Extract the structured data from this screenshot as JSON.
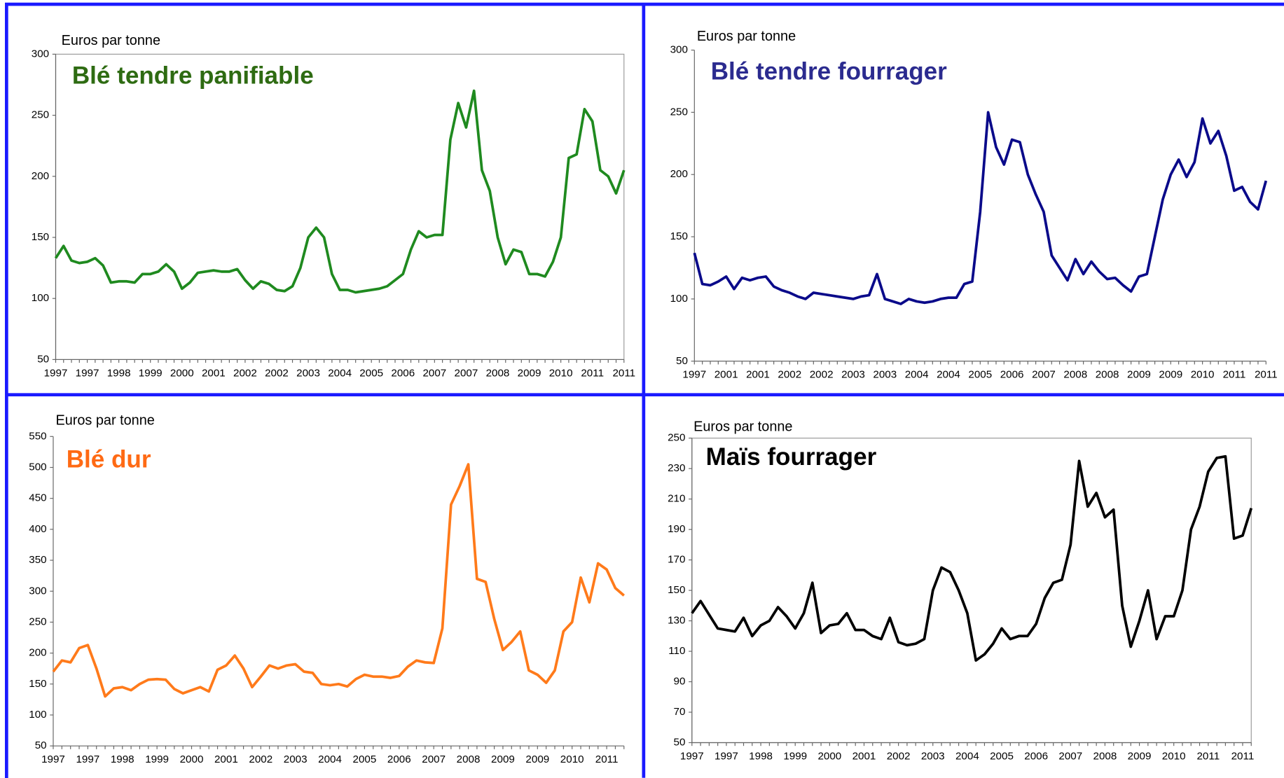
{
  "chart_data": [
    {
      "type": "line",
      "title": "Blé tendre panifiable",
      "y_label": "Euros par tonne",
      "color": "#1f8a1f",
      "categories": [
        "1997",
        null,
        null,
        null,
        "1997",
        null,
        null,
        null,
        "1998",
        null,
        null,
        null,
        "1999",
        null,
        null,
        null,
        "2000",
        null,
        null,
        null,
        "2001",
        null,
        null,
        null,
        "2002",
        null,
        null,
        null,
        "2002",
        null,
        null,
        null,
        "2003",
        null,
        null,
        null,
        "2004",
        null,
        null,
        null,
        "2005",
        null,
        null,
        null,
        "2006",
        null,
        null,
        null,
        "2007",
        null,
        null,
        null,
        "2007",
        null,
        null,
        null,
        "2008",
        null,
        null,
        null,
        "2009",
        null,
        null,
        null,
        "2010",
        null,
        null,
        null,
        "2011",
        null,
        null,
        null,
        "2011"
      ],
      "values": [
        133,
        143,
        131,
        129,
        130,
        133,
        127,
        113,
        114,
        114,
        113,
        120,
        120,
        122,
        128,
        122,
        108,
        113,
        121,
        122,
        123,
        122,
        122,
        124,
        115,
        108,
        114,
        112,
        107,
        106,
        110,
        125,
        150,
        158,
        150,
        120,
        107,
        107,
        105,
        106,
        107,
        108,
        110,
        115,
        120,
        140,
        155,
        150,
        152,
        152,
        230,
        260,
        240,
        270,
        205,
        188,
        150,
        128,
        140,
        138,
        120,
        120,
        118,
        130,
        150,
        215,
        218,
        255,
        245,
        205,
        200,
        186,
        205
      ],
      "ylim": [
        50,
        300
      ],
      "yticks": [
        50,
        100,
        150,
        200,
        250,
        300
      ]
    },
    {
      "type": "line",
      "title": "Blé tendre fourrager",
      "y_label": "Euros par tonne",
      "color": "#0a0a8a",
      "categories": [
        "1997",
        null,
        null,
        null,
        "2001",
        null,
        null,
        null,
        "2001",
        null,
        null,
        null,
        "2002",
        null,
        null,
        null,
        "2002",
        null,
        null,
        null,
        "2003",
        null,
        null,
        null,
        "2003",
        null,
        null,
        null,
        "2004",
        null,
        null,
        null,
        "2004",
        null,
        null,
        null,
        "2005",
        null,
        null,
        null,
        "2006",
        null,
        null,
        null,
        "2007",
        null,
        null,
        null,
        "2008",
        null,
        null,
        null,
        "2008",
        null,
        null,
        null,
        "2009",
        null,
        null,
        null,
        "2009",
        null,
        null,
        null,
        "2010",
        null,
        null,
        null,
        "2011",
        null,
        null,
        null,
        "2011"
      ],
      "values": [
        137,
        112,
        111,
        114,
        118,
        108,
        117,
        115,
        117,
        118,
        110,
        107,
        105,
        102,
        100,
        105,
        104,
        103,
        102,
        101,
        100,
        102,
        103,
        120,
        100,
        98,
        96,
        100,
        98,
        97,
        98,
        100,
        101,
        101,
        112,
        114,
        170,
        250,
        222,
        208,
        228,
        226,
        200,
        184,
        170,
        135,
        125,
        115,
        132,
        120,
        130,
        122,
        116,
        117,
        111,
        106,
        118,
        120,
        150,
        180,
        200,
        212,
        198,
        210,
        245,
        225,
        235,
        215,
        187,
        190,
        178,
        172,
        195
      ],
      "ylim": [
        50,
        300
      ],
      "yticks": [
        50,
        100,
        150,
        200,
        250,
        300
      ]
    },
    {
      "type": "line",
      "title": "Blé dur",
      "y_label": "Euros par tonne",
      "color": "#ff7a1a",
      "categories": [
        "1997",
        null,
        null,
        null,
        "1997",
        null,
        null,
        null,
        "1998",
        null,
        null,
        null,
        "1999",
        null,
        null,
        null,
        "2000",
        null,
        null,
        null,
        "2001",
        null,
        null,
        null,
        "2002",
        null,
        null,
        null,
        "2003",
        null,
        null,
        null,
        "2004",
        null,
        null,
        null,
        "2005",
        null,
        null,
        null,
        "2006",
        null,
        null,
        null,
        "2007",
        null,
        null,
        null,
        "2008",
        null,
        null,
        null,
        "2009",
        null,
        null,
        null,
        "2009",
        null,
        null,
        null,
        "2010",
        null,
        null,
        null,
        "2011",
        null,
        null
      ],
      "values": [
        170,
        188,
        185,
        208,
        213,
        175,
        130,
        143,
        145,
        140,
        150,
        157,
        158,
        157,
        142,
        135,
        140,
        145,
        138,
        173,
        180,
        196,
        175,
        145,
        162,
        180,
        175,
        180,
        182,
        170,
        168,
        150,
        148,
        150,
        146,
        158,
        165,
        162,
        162,
        160,
        163,
        178,
        188,
        185,
        184,
        240,
        440,
        470,
        505,
        320,
        315,
        255,
        205,
        218,
        235,
        172,
        165,
        152,
        172,
        235,
        250,
        322,
        282,
        345,
        335,
        305,
        293
      ],
      "ylim": [
        50,
        550
      ],
      "yticks": [
        50,
        100,
        150,
        200,
        250,
        300,
        350,
        400,
        450,
        500,
        550
      ]
    },
    {
      "type": "line",
      "title": "Maïs fourrager",
      "y_label": "Euros par tonne",
      "color": "#000000",
      "categories": [
        "1997",
        null,
        null,
        null,
        "1997",
        null,
        null,
        null,
        "1998",
        null,
        null,
        null,
        "1999",
        null,
        null,
        null,
        "2000",
        null,
        null,
        null,
        "2001",
        null,
        null,
        null,
        "2002",
        null,
        null,
        null,
        "2003",
        null,
        null,
        null,
        "2004",
        null,
        null,
        null,
        "2005",
        null,
        null,
        null,
        "2006",
        null,
        null,
        null,
        "2007",
        null,
        null,
        null,
        "2008",
        null,
        null,
        null,
        "2009",
        null,
        null,
        null,
        "2010",
        null,
        null,
        null,
        "2011",
        null,
        null,
        null,
        "2011",
        null
      ],
      "values": [
        135,
        143,
        134,
        125,
        124,
        123,
        132,
        120,
        127,
        130,
        139,
        133,
        125,
        135,
        155,
        122,
        127,
        128,
        135,
        124,
        124,
        120,
        118,
        132,
        116,
        114,
        115,
        118,
        150,
        165,
        162,
        150,
        135,
        104,
        108,
        115,
        125,
        118,
        120,
        120,
        128,
        145,
        155,
        157,
        180,
        235,
        205,
        214,
        198,
        203,
        140,
        113,
        130,
        150,
        118,
        133,
        133,
        150,
        190,
        205,
        228,
        237,
        238,
        184,
        186,
        204
      ],
      "ylim": [
        50,
        250
      ],
      "yticks": [
        50,
        70,
        90,
        110,
        130,
        150,
        170,
        190,
        210,
        230,
        250
      ]
    }
  ]
}
